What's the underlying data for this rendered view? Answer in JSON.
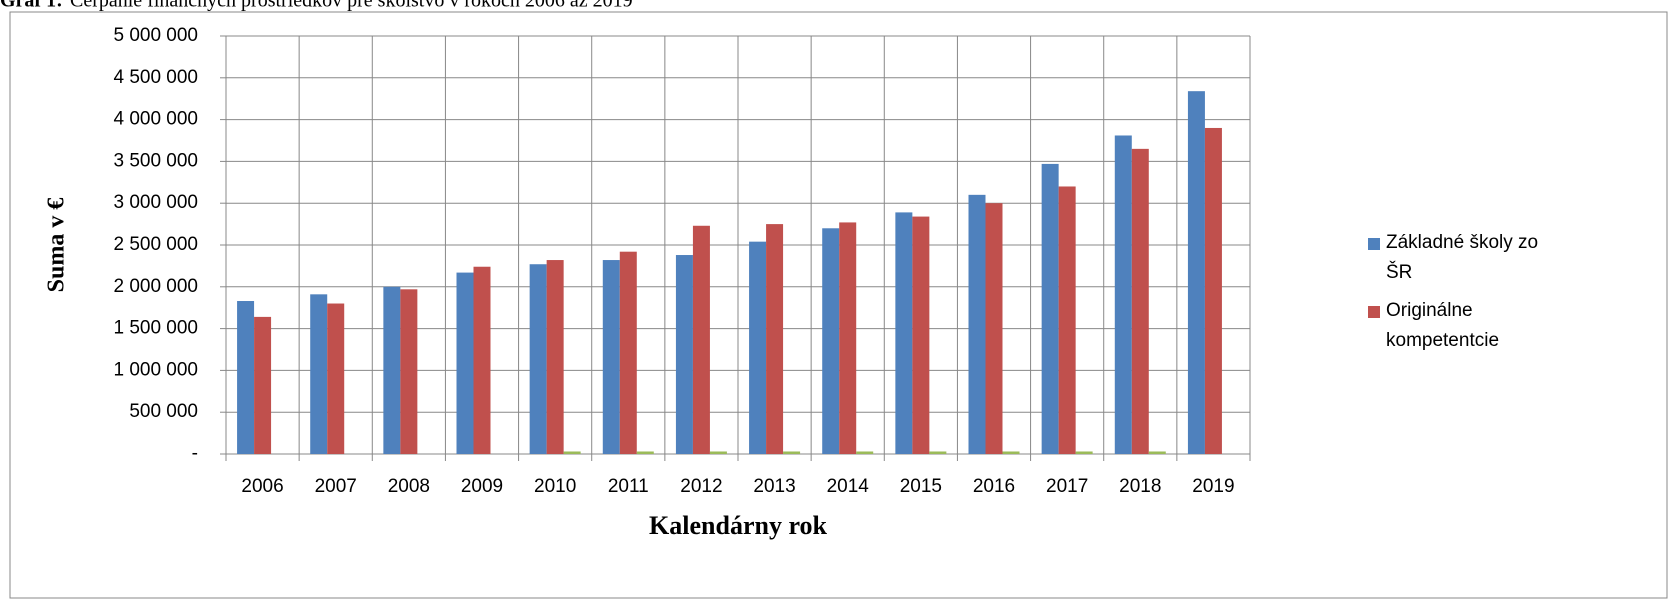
{
  "chart_data": {
    "type": "bar",
    "title_label": "Graf 1:",
    "title": "Čerpanie finančných prostriedkov pre školstvo v rokoch 2006 až 2019",
    "y_label": "Suma v €",
    "x_label": "Kalendárny rok",
    "categories": [
      "2006",
      "2007",
      "2008",
      "2009",
      "2010",
      "2011",
      "2012",
      "2013",
      "2014",
      "2015",
      "2016",
      "2017",
      "2018",
      "2019"
    ],
    "series": [
      {
        "name": "Základné školy zo ŠR",
        "color": "#4f81bd",
        "values": [
          1830000,
          1910000,
          2000000,
          2170000,
          2270000,
          2320000,
          2380000,
          2540000,
          2700000,
          2890000,
          3100000,
          3470000,
          3810000,
          4340000
        ]
      },
      {
        "name": "Originálne kompetentcie",
        "color": "#c0504d",
        "values": [
          1640000,
          1800000,
          1970000,
          2240000,
          2320000,
          2420000,
          2730000,
          2750000,
          2770000,
          2840000,
          3000000,
          3200000,
          3650000,
          3900000
        ]
      },
      {
        "color": "#9bbb59",
        "values": [
          null,
          null,
          null,
          null,
          30000,
          30000,
          30000,
          30000,
          30000,
          30000,
          30000,
          30000,
          30000,
          null
        ]
      }
    ],
    "ylim": [
      0,
      5000000
    ],
    "yticks": [
      {
        "value": 0,
        "label": "-"
      },
      {
        "value": 500000,
        "label": "500 000"
      },
      {
        "value": 1000000,
        "label": "1 000 000"
      },
      {
        "value": 1500000,
        "label": "1 500 000"
      },
      {
        "value": 2000000,
        "label": "2 000 000"
      },
      {
        "value": 2500000,
        "label": "2 500 000"
      },
      {
        "value": 3000000,
        "label": "3 000 000"
      },
      {
        "value": 3500000,
        "label": "3 500 000"
      },
      {
        "value": 4000000,
        "label": "4 000 000"
      },
      {
        "value": 4500000,
        "label": "4 500 000"
      },
      {
        "value": 5000000,
        "label": "5 000 000"
      }
    ],
    "grid": true,
    "legend": "right"
  }
}
